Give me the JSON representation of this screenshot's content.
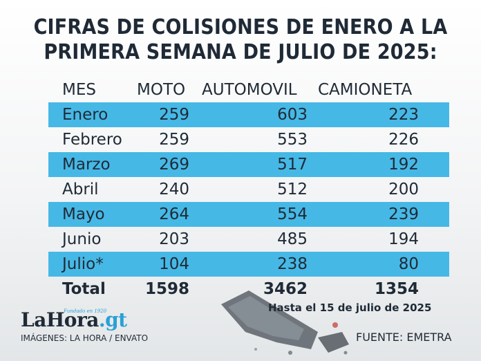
{
  "title": {
    "line1": "CIFRAS DE COLISIONES DE ENERO A LA",
    "line2": "PRIMERA SEMANA DE JULIO DE 2025:"
  },
  "table": {
    "headers": [
      "MES",
      "MOTO",
      "AUTOMOVIL",
      "CAMIONETA"
    ],
    "rows": [
      {
        "mes": "Enero",
        "moto": "259",
        "automovil": "603",
        "camioneta": "223"
      },
      {
        "mes": "Febrero",
        "moto": "259",
        "automovil": "553",
        "camioneta": "226"
      },
      {
        "mes": "Marzo",
        "moto": "269",
        "automovil": "517",
        "camioneta": "192"
      },
      {
        "mes": "Abril",
        "moto": "240",
        "automovil": "512",
        "camioneta": "200"
      },
      {
        "mes": "Mayo",
        "moto": "264",
        "automovil": "554",
        "camioneta": "239"
      },
      {
        "mes": "Junio",
        "moto": "203",
        "automovil": "485",
        "camioneta": "194"
      },
      {
        "mes": "Julio*",
        "moto": "104",
        "automovil": "238",
        "camioneta": "80"
      }
    ],
    "total": {
      "mes": "Total",
      "moto": "1598",
      "automovil": "3462",
      "camioneta": "1354"
    },
    "stripe_color": "#46b8e6"
  },
  "note": "Hasta el 15 de julio de 2025",
  "source": "FUENTE: EMETRA",
  "brand": {
    "logo_main": "LaHora",
    "logo_suffix": ".gt",
    "tagline": "Fundado en 1920",
    "credits": "IMÁGENES: LA HORA / ENVATO"
  },
  "colors": {
    "text": "#1f2a36",
    "accent": "#2aa0d6"
  }
}
